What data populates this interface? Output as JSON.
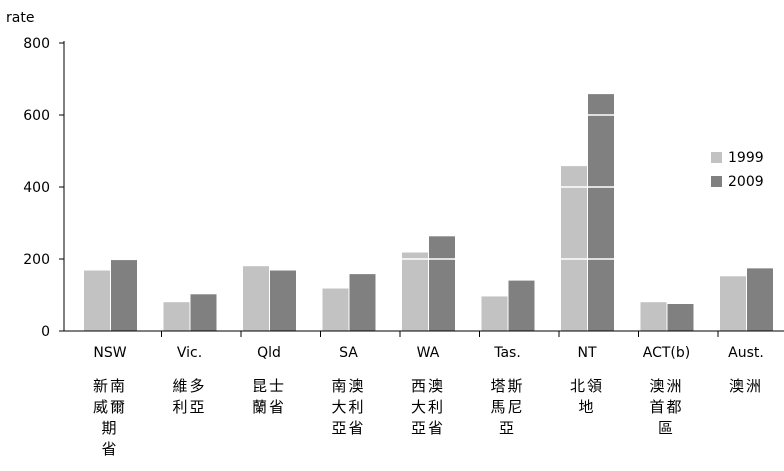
{
  "chart_data": {
    "type": "bar",
    "ylabel": "rate",
    "ylim": [
      0,
      800
    ],
    "yticks": [
      0,
      200,
      400,
      600,
      800
    ],
    "categories": [
      "NSW",
      "Vic.",
      "Qld",
      "SA",
      "WA",
      "Tas.",
      "NT",
      "ACT(b)",
      "Aust."
    ],
    "categories_zh": [
      "新南\n威爾\n期\n省",
      "維多\n利亞",
      "昆士\n蘭省",
      "南澳\n大利\n亞省",
      "西澳\n大利\n亞省",
      "塔斯\n馬尼\n亞",
      "北領\n地",
      "澳洲\n首都\n區",
      "澳洲"
    ],
    "series": [
      {
        "name": "1999",
        "color": "#c2c2c2",
        "values": [
          168,
          80,
          180,
          118,
          218,
          96,
          458,
          80,
          152
        ]
      },
      {
        "name": "2009",
        "color": "#808080",
        "values": [
          197,
          102,
          168,
          158,
          263,
          140,
          658,
          75,
          174
        ]
      }
    ],
    "grid": false,
    "legend": "right"
  }
}
